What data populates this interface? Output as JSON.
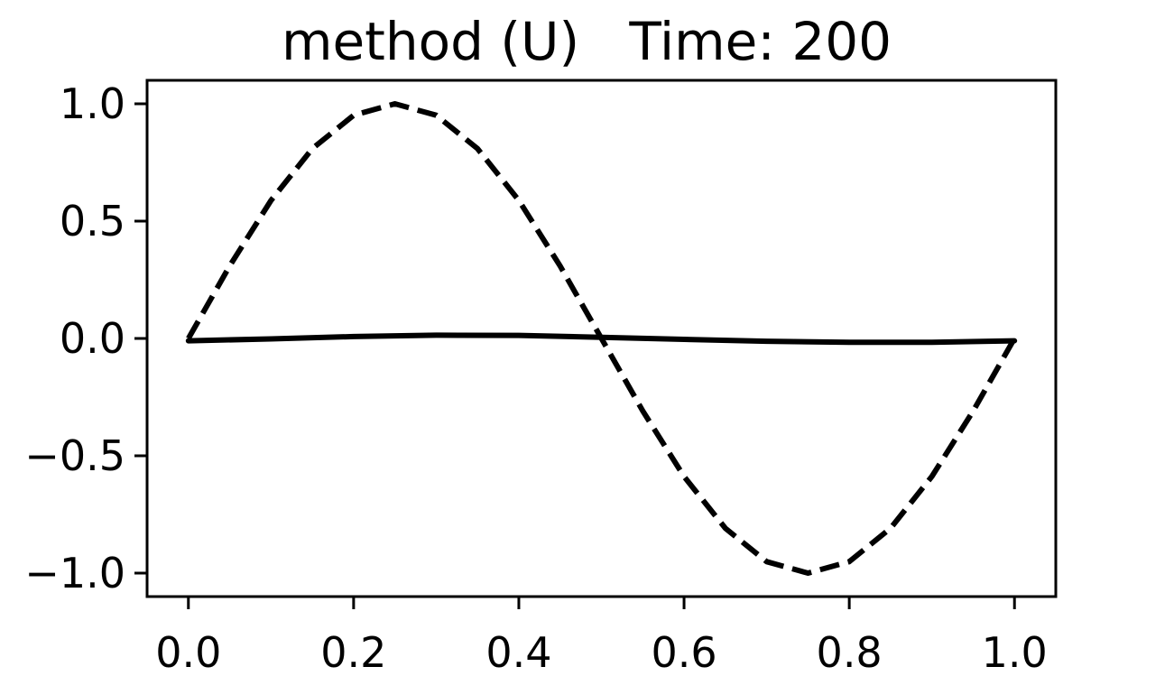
{
  "chart_data": {
    "type": "line",
    "title": "method (U)   Time: 200",
    "xlabel": "",
    "ylabel": "",
    "xlim": [
      -0.05,
      1.05
    ],
    "ylim": [
      -1.1,
      1.1
    ],
    "xticks": [
      0.0,
      0.2,
      0.4,
      0.6,
      0.8,
      1.0
    ],
    "xtick_labels": [
      "0.0",
      "0.2",
      "0.4",
      "0.6",
      "0.8",
      "1.0"
    ],
    "yticks": [
      1.0,
      0.5,
      0.0,
      -0.5,
      -1.0
    ],
    "ytick_labels": [
      "1.0",
      "0.5",
      "0.0",
      "−0.5",
      "−1.0"
    ],
    "grid": false,
    "series": [
      {
        "style": "dashed",
        "color": "#000000",
        "x": [
          0.0,
          0.05,
          0.1,
          0.15,
          0.2,
          0.25,
          0.3,
          0.35,
          0.4,
          0.45,
          0.5,
          0.55,
          0.6,
          0.65,
          0.7,
          0.75,
          0.8,
          0.85,
          0.9,
          0.95,
          1.0
        ],
        "y": [
          0.0,
          0.309,
          0.588,
          0.809,
          0.951,
          1.0,
          0.951,
          0.809,
          0.588,
          0.309,
          0.0,
          -0.309,
          -0.588,
          -0.809,
          -0.951,
          -1.0,
          -0.951,
          -0.809,
          -0.588,
          -0.309,
          0.0
        ]
      },
      {
        "style": "solid",
        "color": "#000000",
        "x": [
          0.0,
          0.1,
          0.2,
          0.3,
          0.4,
          0.5,
          0.6,
          0.7,
          0.8,
          0.9,
          1.0
        ],
        "y": [
          -0.01,
          -0.002,
          0.008,
          0.014,
          0.013,
          0.005,
          -0.004,
          -0.012,
          -0.016,
          -0.016,
          -0.01
        ]
      }
    ]
  }
}
